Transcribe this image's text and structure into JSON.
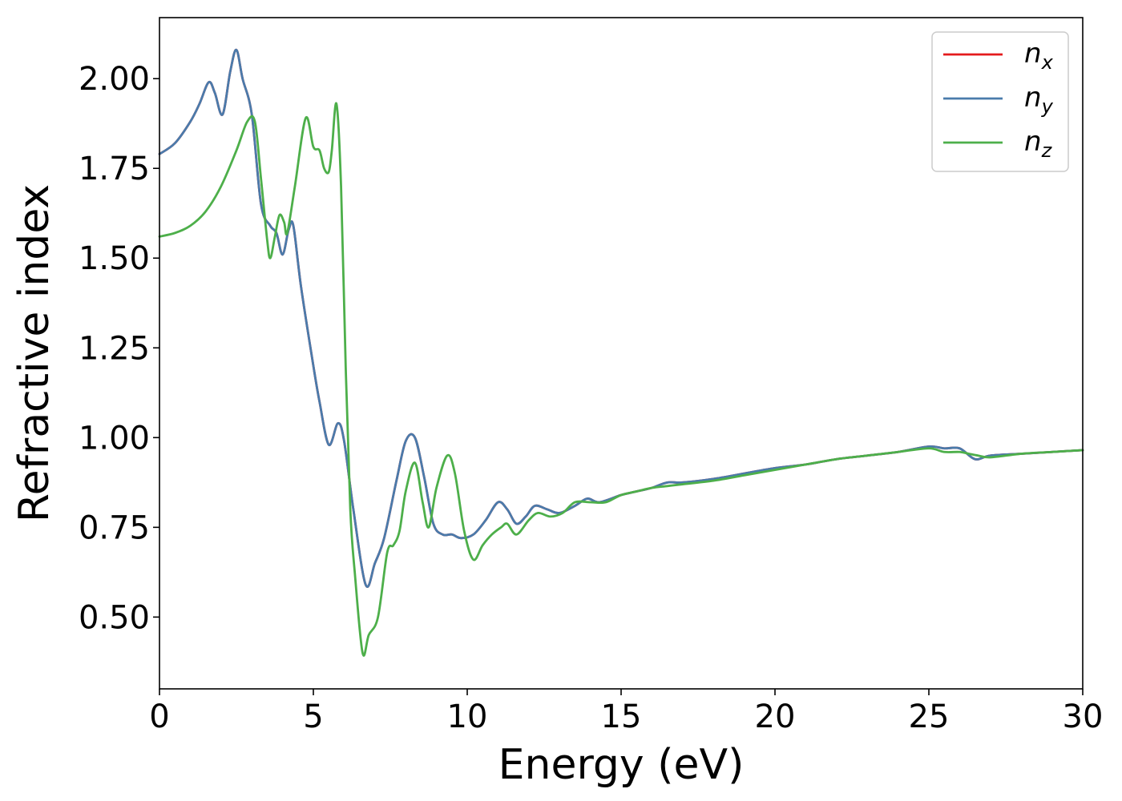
{
  "chart_data": {
    "type": "line",
    "xlabel": "Energy (eV)",
    "ylabel": "Refractive index",
    "xlim": [
      0,
      30
    ],
    "ylim": [
      0.3,
      2.17
    ],
    "xticks": [
      0,
      5,
      10,
      15,
      20,
      25,
      30
    ],
    "xtick_labels": [
      "0",
      "5",
      "10",
      "15",
      "20",
      "25",
      "30"
    ],
    "yticks": [
      0.5,
      0.75,
      1.0,
      1.25,
      1.5,
      1.75,
      2.0
    ],
    "ytick_labels": [
      "0.50",
      "0.75",
      "1.00",
      "1.25",
      "1.50",
      "1.75",
      "2.00"
    ],
    "grid": false,
    "legend_position": "top-right",
    "series": [
      {
        "name": "n_x",
        "name_main": "n",
        "name_sub": "x",
        "color": "#e41a1c",
        "x": [
          0,
          0.5,
          1.0,
          1.3,
          1.6,
          1.8,
          2.05,
          2.3,
          2.5,
          2.7,
          3.0,
          3.3,
          3.6,
          3.8,
          4.0,
          4.2,
          4.35,
          4.6,
          5.0,
          5.2,
          5.5,
          5.8,
          6.0,
          6.3,
          6.7,
          7.0,
          7.3,
          7.7,
          8.0,
          8.3,
          8.6,
          8.9,
          9.2,
          9.5,
          9.8,
          10.2,
          10.6,
          11.0,
          11.3,
          11.6,
          11.9,
          12.2,
          12.6,
          13.0,
          13.5,
          13.9,
          14.3,
          15.0,
          15.5,
          16.0,
          16.5,
          17.0,
          18.0,
          19.0,
          20.0,
          21.0,
          22.0,
          23.0,
          24.0,
          25.0,
          25.5,
          26.0,
          26.5,
          27.0,
          28.0,
          29.0,
          30.0
        ],
        "values": [
          1.79,
          1.82,
          1.88,
          1.93,
          1.99,
          1.96,
          1.9,
          2.02,
          2.08,
          2.0,
          1.9,
          1.65,
          1.59,
          1.57,
          1.51,
          1.58,
          1.59,
          1.42,
          1.2,
          1.1,
          0.98,
          1.04,
          0.99,
          0.8,
          0.59,
          0.65,
          0.72,
          0.88,
          0.99,
          1.0,
          0.89,
          0.76,
          0.73,
          0.73,
          0.72,
          0.73,
          0.77,
          0.82,
          0.8,
          0.76,
          0.78,
          0.81,
          0.8,
          0.79,
          0.81,
          0.83,
          0.82,
          0.84,
          0.85,
          0.86,
          0.875,
          0.875,
          0.885,
          0.9,
          0.915,
          0.925,
          0.94,
          0.95,
          0.96,
          0.975,
          0.97,
          0.97,
          0.94,
          0.95,
          0.955,
          0.96,
          0.965
        ]
      },
      {
        "name": "n_y",
        "name_main": "n",
        "name_sub": "y",
        "color": "#4a7bab",
        "x": [
          0,
          0.5,
          1.0,
          1.3,
          1.6,
          1.8,
          2.05,
          2.3,
          2.5,
          2.7,
          3.0,
          3.3,
          3.6,
          3.8,
          4.0,
          4.2,
          4.35,
          4.6,
          5.0,
          5.2,
          5.5,
          5.8,
          6.0,
          6.3,
          6.7,
          7.0,
          7.3,
          7.7,
          8.0,
          8.3,
          8.6,
          8.9,
          9.2,
          9.5,
          9.8,
          10.2,
          10.6,
          11.0,
          11.3,
          11.6,
          11.9,
          12.2,
          12.6,
          13.0,
          13.5,
          13.9,
          14.3,
          15.0,
          15.5,
          16.0,
          16.5,
          17.0,
          18.0,
          19.0,
          20.0,
          21.0,
          22.0,
          23.0,
          24.0,
          25.0,
          25.5,
          26.0,
          26.5,
          27.0,
          28.0,
          29.0,
          30.0
        ],
        "values": [
          1.79,
          1.82,
          1.88,
          1.93,
          1.99,
          1.96,
          1.9,
          2.02,
          2.08,
          2.0,
          1.9,
          1.65,
          1.59,
          1.57,
          1.51,
          1.58,
          1.59,
          1.42,
          1.2,
          1.1,
          0.98,
          1.04,
          0.99,
          0.8,
          0.59,
          0.65,
          0.72,
          0.88,
          0.99,
          1.0,
          0.89,
          0.76,
          0.73,
          0.73,
          0.72,
          0.73,
          0.77,
          0.82,
          0.8,
          0.76,
          0.78,
          0.81,
          0.8,
          0.79,
          0.81,
          0.83,
          0.82,
          0.84,
          0.85,
          0.86,
          0.875,
          0.875,
          0.885,
          0.9,
          0.915,
          0.925,
          0.94,
          0.95,
          0.96,
          0.975,
          0.97,
          0.97,
          0.94,
          0.95,
          0.955,
          0.96,
          0.965
        ]
      },
      {
        "name": "n_z",
        "name_main": "n",
        "name_sub": "z",
        "color": "#4daf4a",
        "x": [
          0,
          0.5,
          1.0,
          1.5,
          2.0,
          2.5,
          2.85,
          3.1,
          3.3,
          3.5,
          3.6,
          3.75,
          3.9,
          4.05,
          4.15,
          4.4,
          4.75,
          5.0,
          5.2,
          5.35,
          5.5,
          5.6,
          5.75,
          5.9,
          6.05,
          6.2,
          6.35,
          6.6,
          6.8,
          7.1,
          7.4,
          7.6,
          7.8,
          8.0,
          8.3,
          8.55,
          8.75,
          9.0,
          9.35,
          9.6,
          9.9,
          10.2,
          10.5,
          10.8,
          11.1,
          11.3,
          11.6,
          12.0,
          12.3,
          12.7,
          13.1,
          13.5,
          14.0,
          14.5,
          15.0,
          15.5,
          16.0,
          16.5,
          17.0,
          18.0,
          19.0,
          20.0,
          21.0,
          22.0,
          23.0,
          24.0,
          25.0,
          25.5,
          26.0,
          26.3,
          26.6,
          27.0,
          28.0,
          29.0,
          30.0
        ],
        "values": [
          1.56,
          1.57,
          1.59,
          1.63,
          1.7,
          1.8,
          1.88,
          1.88,
          1.72,
          1.55,
          1.5,
          1.56,
          1.62,
          1.6,
          1.57,
          1.7,
          1.89,
          1.81,
          1.8,
          1.75,
          1.74,
          1.8,
          1.93,
          1.7,
          1.2,
          0.8,
          0.62,
          0.4,
          0.45,
          0.5,
          0.68,
          0.7,
          0.74,
          0.85,
          0.93,
          0.82,
          0.75,
          0.86,
          0.95,
          0.9,
          0.74,
          0.66,
          0.7,
          0.73,
          0.75,
          0.76,
          0.73,
          0.77,
          0.79,
          0.78,
          0.79,
          0.82,
          0.82,
          0.82,
          0.84,
          0.85,
          0.86,
          0.865,
          0.87,
          0.88,
          0.895,
          0.91,
          0.925,
          0.94,
          0.95,
          0.96,
          0.97,
          0.96,
          0.96,
          0.955,
          0.95,
          0.945,
          0.955,
          0.96,
          0.965
        ]
      }
    ]
  }
}
